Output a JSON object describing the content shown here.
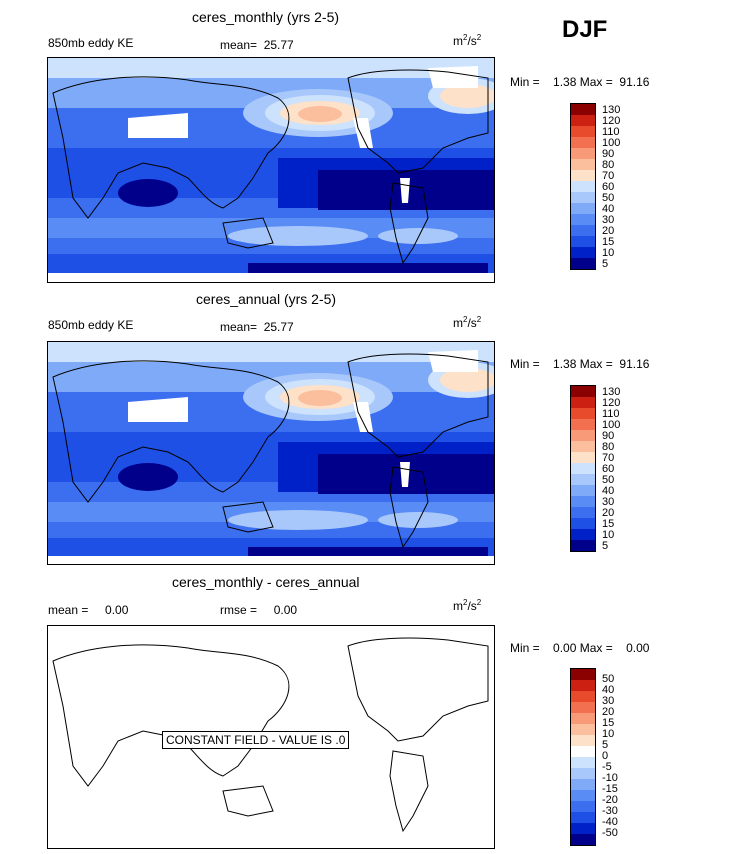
{
  "season": "DJF",
  "colors": {
    "positive_scale": [
      "#00008b",
      "#0020c8",
      "#1e50e6",
      "#3c6ef0",
      "#5a8cf5",
      "#7eaaf8",
      "#a8c8fb",
      "#cde2fd",
      "#fde1c8",
      "#fcbf9e",
      "#f89a78",
      "#f27050",
      "#e84a2c",
      "#cc2012",
      "#8b0000"
    ],
    "diff_scale": [
      "#00008b",
      "#0020c8",
      "#1e50e6",
      "#3c6ef0",
      "#5a8cf5",
      "#7eaaf8",
      "#a8c8fb",
      "#cde2fd",
      "#ffffff",
      "#fde1c8",
      "#fcbf9e",
      "#f89a78",
      "#f27050",
      "#e84a2c",
      "#cc2012",
      "#8b0000"
    ]
  },
  "panels": [
    {
      "title": "ceres_monthly (yrs 2-5)",
      "left_label": "850mb eddy KE",
      "mean_label": "mean=",
      "mean_value": "25.77",
      "units_base": "m",
      "units_sup1": "2",
      "units_mid": "/s",
      "units_sup2": "2",
      "min_label": "Min =",
      "min_value": "1.38",
      "max_label": "Max =",
      "max_value": "91.16",
      "colorbar_ticks": [
        "130",
        "120",
        "110",
        "100",
        "90",
        "80",
        "70",
        "60",
        "50",
        "40",
        "30",
        "20",
        "15",
        "10",
        "5"
      ]
    },
    {
      "title": "ceres_annual (yrs 2-5)",
      "left_label": "850mb eddy KE",
      "mean_label": "mean=",
      "mean_value": "25.77",
      "units_base": "m",
      "units_sup1": "2",
      "units_mid": "/s",
      "units_sup2": "2",
      "min_label": "Min =",
      "min_value": "1.38",
      "max_label": "Max =",
      "max_value": "91.16",
      "colorbar_ticks": [
        "130",
        "120",
        "110",
        "100",
        "90",
        "80",
        "70",
        "60",
        "50",
        "40",
        "30",
        "20",
        "15",
        "10",
        "5"
      ]
    },
    {
      "title": "ceres_monthly - ceres_annual",
      "left_label": "mean =",
      "mean_value": "0.00",
      "rmse_label": "rmse =",
      "rmse_value": "0.00",
      "units_base": "m",
      "units_sup1": "2",
      "units_mid": "/s",
      "units_sup2": "2",
      "min_label": "Min =",
      "min_value": "0.00",
      "max_label": "Max =",
      "max_value": "0.00",
      "constant_field_label": "CONSTANT FIELD - VALUE IS .0",
      "colorbar_ticks": [
        "50",
        "40",
        "30",
        "20",
        "15",
        "10",
        "5",
        "0",
        "-5",
        "-10",
        "-15",
        "-20",
        "-30",
        "-40",
        "-50"
      ]
    }
  ],
  "chart_data": [
    {
      "type": "heatmap",
      "title": "ceres_monthly (yrs 2-5)",
      "variable": "850mb eddy KE",
      "units": "m2/s2",
      "mean": 25.77,
      "min": 1.38,
      "max": 91.16,
      "contour_levels": [
        5,
        10,
        15,
        20,
        30,
        40,
        50,
        60,
        70,
        80,
        90,
        100,
        110,
        120,
        130
      ]
    },
    {
      "type": "heatmap",
      "title": "ceres_annual (yrs 2-5)",
      "variable": "850mb eddy KE",
      "units": "m2/s2",
      "mean": 25.77,
      "min": 1.38,
      "max": 91.16,
      "contour_levels": [
        5,
        10,
        15,
        20,
        30,
        40,
        50,
        60,
        70,
        80,
        90,
        100,
        110,
        120,
        130
      ]
    },
    {
      "type": "heatmap",
      "title": "ceres_monthly - ceres_annual",
      "units": "m2/s2",
      "mean": 0.0,
      "rmse": 0.0,
      "min": 0.0,
      "max": 0.0,
      "contour_levels": [
        -50,
        -40,
        -30,
        -20,
        -15,
        -10,
        -5,
        0,
        5,
        10,
        15,
        20,
        30,
        40,
        50
      ]
    }
  ]
}
